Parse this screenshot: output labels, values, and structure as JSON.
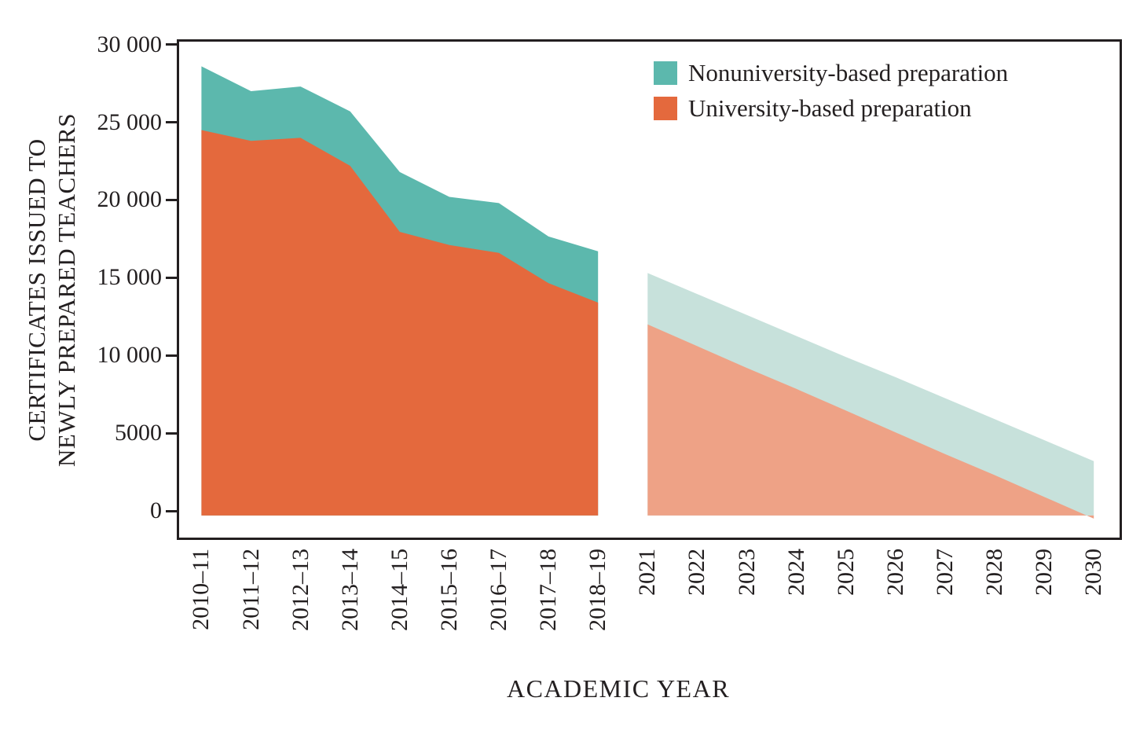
{
  "figure": {
    "background": "#ffffff",
    "text_color": "#231f20",
    "frame_color": "#231f20"
  },
  "y_axis": {
    "title_lines": [
      "CERTIFICATES ISSUED TO",
      "NEWLY PREPARED TEACHERS"
    ],
    "range": [
      0,
      30000
    ],
    "ticks": [
      {
        "value": 0,
        "label": "0"
      },
      {
        "value": 5000,
        "label": "5000"
      },
      {
        "value": 10000,
        "label": "10 000"
      },
      {
        "value": 15000,
        "label": "15 000"
      },
      {
        "value": 20000,
        "label": "20 000"
      },
      {
        "value": 25000,
        "label": "25 000"
      },
      {
        "value": 30000,
        "label": "30 000"
      }
    ]
  },
  "x_axis": {
    "title": "ACADEMIC YEAR"
  },
  "legend": {
    "items": [
      {
        "label": "Nonuniversity-based preparation",
        "color": "#5cb8ad"
      },
      {
        "label": "University-based preparation",
        "color": "#e4693d"
      }
    ]
  },
  "chart_data": {
    "type": "area",
    "stacked": true,
    "title": "",
    "xlabel": "ACADEMIC YEAR",
    "ylabel": "CERTIFICATES ISSUED TO NEWLY PREPARED TEACHERS",
    "ylim": [
      0,
      30000
    ],
    "grid": false,
    "legend_position": "top-right",
    "historical": {
      "categories": [
        "2010–11",
        "2011–12",
        "2012–13",
        "2013–14",
        "2014–15",
        "2015–16",
        "2016–17",
        "2017–18",
        "2018–19"
      ],
      "series": [
        {
          "name": "University-based preparation",
          "color": "#e4693d",
          "values": [
            24500,
            23800,
            24000,
            22200,
            17950,
            17100,
            16600,
            14650,
            13400
          ]
        },
        {
          "name": "Nonuniversity-based preparation",
          "color": "#5cb8ad",
          "values": [
            4100,
            3200,
            3300,
            3500,
            3850,
            3100,
            3200,
            3000,
            3300
          ]
        }
      ],
      "totals": [
        28600,
        27000,
        27300,
        25700,
        21800,
        20200,
        19800,
        17650,
        16700
      ]
    },
    "projected": {
      "categories": [
        "2021",
        "2022",
        "2023",
        "2024",
        "2025",
        "2026",
        "2027",
        "2028",
        "2029",
        "2030"
      ],
      "series": [
        {
          "name": "University-based preparation (projected)",
          "color": "#eea286",
          "values": [
            12000,
            10600,
            9200,
            7850,
            6450,
            5050,
            3650,
            2300,
            900,
            -500
          ]
        },
        {
          "name": "Nonuniversity-based preparation (projected)",
          "color": "#c7e1db",
          "values": [
            3300,
            3350,
            3400,
            3400,
            3450,
            3550,
            3600,
            3600,
            3650,
            3700
          ]
        }
      ],
      "totals": [
        15300,
        13950,
        12600,
        11250,
        9900,
        8600,
        7250,
        5900,
        4550,
        3200
      ]
    }
  }
}
